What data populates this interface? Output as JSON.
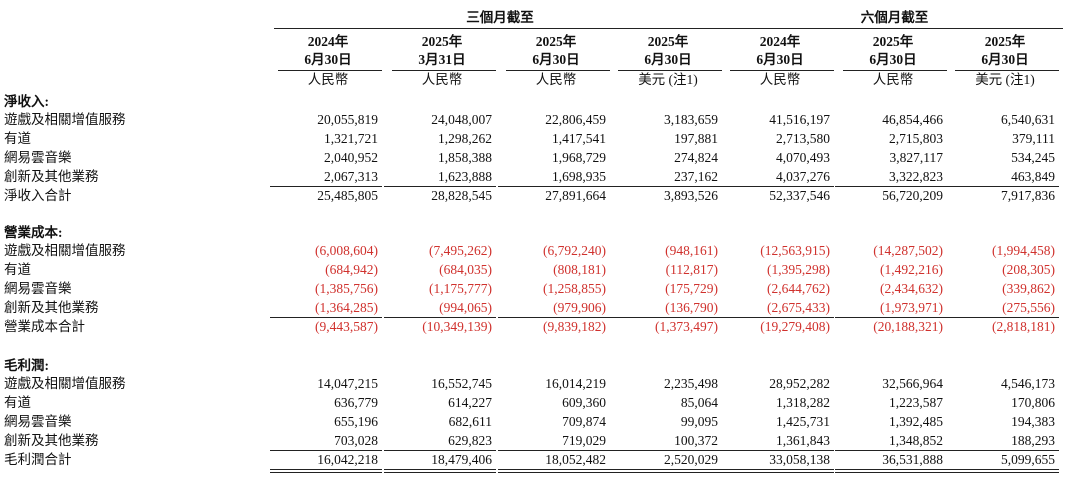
{
  "header": {
    "groups": [
      {
        "label": "三個月截至",
        "span": 4
      },
      {
        "label": "六個月截至",
        "span": 3
      }
    ],
    "columns": [
      {
        "year": "2024年",
        "date": "6月30日",
        "currency": "人民幣"
      },
      {
        "year": "2025年",
        "date": "3月31日",
        "currency": "人民幣"
      },
      {
        "year": "2025年",
        "date": "6月30日",
        "currency": "人民幣"
      },
      {
        "year": "2025年",
        "date": "6月30日",
        "currency": "美元 (注1)"
      },
      {
        "year": "2024年",
        "date": "6月30日",
        "currency": "人民幣"
      },
      {
        "year": "2025年",
        "date": "6月30日",
        "currency": "人民幣"
      },
      {
        "year": "2025年",
        "date": "6月30日",
        "currency": "美元 (注1)"
      }
    ]
  },
  "sections": [
    {
      "title": "淨收入:",
      "rows": [
        {
          "label": "遊戲及相關增值服務",
          "values": [
            "20,055,819",
            "24,048,007",
            "22,806,459",
            "3,183,659",
            "41,516,197",
            "46,854,466",
            "6,540,631"
          ]
        },
        {
          "label": "有道",
          "values": [
            "1,321,721",
            "1,298,262",
            "1,417,541",
            "197,881",
            "2,713,580",
            "2,715,803",
            "379,111"
          ]
        },
        {
          "label": "網易雲音樂",
          "values": [
            "2,040,952",
            "1,858,388",
            "1,968,729",
            "274,824",
            "4,070,493",
            "3,827,117",
            "534,245"
          ]
        },
        {
          "label": "創新及其他業務",
          "values": [
            "2,067,313",
            "1,623,888",
            "1,698,935",
            "237,162",
            "4,037,276",
            "3,322,823",
            "463,849"
          ]
        }
      ],
      "total": {
        "label": "淨收入合計",
        "values": [
          "25,485,805",
          "28,828,545",
          "27,891,664",
          "3,893,526",
          "52,337,546",
          "56,720,209",
          "7,917,836"
        ]
      }
    },
    {
      "title": "營業成本:",
      "rows": [
        {
          "label": "遊戲及相關增值服務",
          "values": [
            "(6,008,604)",
            "(7,495,262)",
            "(6,792,240)",
            "(948,161)",
            "(12,563,915)",
            "(14,287,502)",
            "(1,994,458)"
          ]
        },
        {
          "label": "有道",
          "values": [
            "(684,942)",
            "(684,035)",
            "(808,181)",
            "(112,817)",
            "(1,395,298)",
            "(1,492,216)",
            "(208,305)"
          ]
        },
        {
          "label": "網易雲音樂",
          "values": [
            "(1,385,756)",
            "(1,175,777)",
            "(1,258,855)",
            "(175,729)",
            "(2,644,762)",
            "(2,434,632)",
            "(339,862)"
          ]
        },
        {
          "label": "創新及其他業務",
          "values": [
            "(1,364,285)",
            "(994,065)",
            "(979,906)",
            "(136,790)",
            "(2,675,433)",
            "(1,973,971)",
            "(275,556)"
          ]
        }
      ],
      "total": {
        "label": "營業成本合計",
        "values": [
          "(9,443,587)",
          "(10,349,139)",
          "(9,839,182)",
          "(1,373,497)",
          "(19,279,408)",
          "(20,188,321)",
          "(2,818,181)"
        ]
      }
    },
    {
      "title": "毛利潤:",
      "rows": [
        {
          "label": "遊戲及相關增值服務",
          "values": [
            "14,047,215",
            "16,552,745",
            "16,014,219",
            "2,235,498",
            "28,952,282",
            "32,566,964",
            "4,546,173"
          ]
        },
        {
          "label": "有道",
          "values": [
            "636,779",
            "614,227",
            "609,360",
            "85,064",
            "1,318,282",
            "1,223,587",
            "170,806"
          ]
        },
        {
          "label": "網易雲音樂",
          "values": [
            "655,196",
            "682,611",
            "709,874",
            "99,095",
            "1,425,731",
            "1,392,485",
            "194,383"
          ]
        },
        {
          "label": "創新及其他業務",
          "values": [
            "703,028",
            "629,823",
            "719,029",
            "100,372",
            "1,361,843",
            "1,348,852",
            "188,293"
          ]
        }
      ],
      "total": {
        "label": "毛利潤合計",
        "values": [
          "16,042,218",
          "18,479,406",
          "18,052,482",
          "2,520,029",
          "33,058,138",
          "36,531,888",
          "5,099,655"
        ]
      }
    }
  ]
}
